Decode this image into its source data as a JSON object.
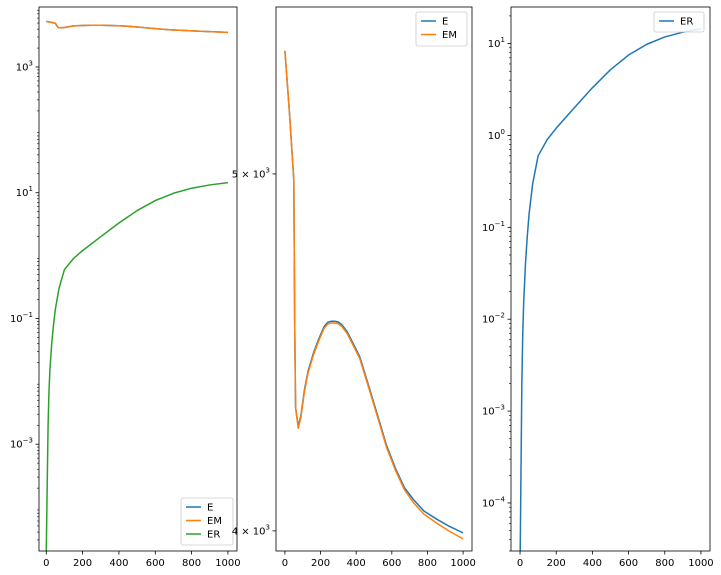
{
  "chart_data": [
    {
      "type": "line",
      "title": "",
      "xlabel": "",
      "ylabel": "",
      "yscale": "log",
      "xlim": [
        -40,
        1050
      ],
      "ylim": [
        2e-05,
        9000
      ],
      "x_ticks": [
        {
          "value": 0,
          "label": "0"
        },
        {
          "value": 200,
          "label": "200"
        },
        {
          "value": 400,
          "label": "400"
        },
        {
          "value": 600,
          "label": "600"
        },
        {
          "value": 800,
          "label": "800"
        },
        {
          "value": 1000,
          "label": "1000"
        }
      ],
      "y_ticks": [
        {
          "value": 0.001,
          "base": "10",
          "exp": "−3"
        },
        {
          "value": 0.1,
          "base": "10",
          "exp": "−1"
        },
        {
          "value": 10,
          "base": "10",
          "exp": "1"
        },
        {
          "value": 1000,
          "base": "10",
          "exp": "3"
        }
      ],
      "grid": false,
      "legend_position": "lower-right",
      "series": [
        {
          "name": "E",
          "color": "#1f77b4",
          "x": [
            0,
            25,
            50,
            65,
            75,
            100,
            150,
            200,
            250,
            300,
            350,
            400,
            450,
            500,
            550,
            600,
            650,
            700,
            750,
            800,
            850,
            900,
            950,
            1000
          ],
          "y": [
            5300,
            5150,
            4950,
            4250,
            4200,
            4250,
            4500,
            4580,
            4620,
            4610,
            4570,
            4530,
            4450,
            4320,
            4200,
            4080,
            3960,
            3880,
            3820,
            3760,
            3700,
            3650,
            3600,
            3550
          ]
        },
        {
          "name": "EM",
          "color": "#ff7f0e",
          "x": [
            0,
            25,
            50,
            65,
            75,
            100,
            150,
            200,
            250,
            300,
            350,
            400,
            450,
            500,
            550,
            600,
            650,
            700,
            750,
            800,
            850,
            900,
            950,
            1000
          ],
          "y": [
            5300,
            5150,
            4950,
            4250,
            4200,
            4250,
            4500,
            4580,
            4620,
            4610,
            4570,
            4530,
            4450,
            4320,
            4200,
            4080,
            3960,
            3880,
            3820,
            3760,
            3700,
            3650,
            3600,
            3550
          ]
        },
        {
          "name": "ER",
          "color": "#2ca02c",
          "x": [
            0,
            5,
            10,
            15,
            20,
            30,
            40,
            50,
            70,
            100,
            150,
            200,
            300,
            400,
            500,
            600,
            700,
            800,
            900,
            1000
          ],
          "y": [
            2e-05,
            0.0002,
            0.002,
            0.007,
            0.015,
            0.04,
            0.08,
            0.14,
            0.3,
            0.6,
            0.9,
            1.2,
            2.0,
            3.3,
            5.2,
            7.5,
            9.8,
            11.8,
            13.3,
            14.5
          ]
        }
      ]
    },
    {
      "type": "line",
      "title": "",
      "xlabel": "",
      "ylabel": "",
      "yscale": "log",
      "xlim": [
        -50,
        1050
      ],
      "ylim": [
        3950,
        5550
      ],
      "x_ticks": [
        {
          "value": 0,
          "label": "0"
        },
        {
          "value": 200,
          "label": "200"
        },
        {
          "value": 400,
          "label": "400"
        },
        {
          "value": 600,
          "label": "600"
        },
        {
          "value": 800,
          "label": "800"
        },
        {
          "value": 1000,
          "label": "1000"
        }
      ],
      "y_ticks": [
        {
          "value": 4000,
          "base": "4 × 10",
          "exp": "3"
        },
        {
          "value": 5000,
          "base": "5 × 10",
          "exp": "3"
        }
      ],
      "grid": false,
      "legend_position": "top-right",
      "series": [
        {
          "name": "E",
          "color": "#1f77b4",
          "x": [
            0,
            25,
            50,
            55,
            60,
            75,
            90,
            110,
            130,
            160,
            190,
            220,
            240,
            260,
            280,
            300,
            320,
            350,
            380,
            420,
            470,
            520,
            570,
            620,
            670,
            720,
            780,
            850,
            920,
            1000
          ],
          "y": [
            5400,
            5200,
            4980,
            4550,
            4320,
            4270,
            4300,
            4370,
            4420,
            4470,
            4510,
            4545,
            4557,
            4560,
            4560,
            4558,
            4550,
            4530,
            4500,
            4460,
            4380,
            4300,
            4220,
            4160,
            4110,
            4080,
            4050,
            4030,
            4012,
            3995
          ]
        },
        {
          "name": "EM",
          "color": "#ff7f0e",
          "x": [
            0,
            25,
            50,
            55,
            60,
            75,
            90,
            110,
            130,
            160,
            190,
            220,
            240,
            260,
            280,
            300,
            320,
            350,
            380,
            420,
            470,
            520,
            570,
            620,
            670,
            720,
            780,
            850,
            920,
            1000
          ],
          "y": [
            5400,
            5200,
            4980,
            4550,
            4320,
            4265,
            4295,
            4365,
            4415,
            4465,
            4505,
            4540,
            4552,
            4555,
            4555,
            4553,
            4545,
            4525,
            4495,
            4455,
            4375,
            4295,
            4215,
            4155,
            4105,
            4072,
            4042,
            4020,
            4000,
            3980
          ]
        }
      ]
    },
    {
      "type": "line",
      "title": "",
      "xlabel": "",
      "ylabel": "",
      "yscale": "log",
      "xlim": [
        -50,
        1050
      ],
      "ylim": [
        3e-05,
        25
      ],
      "x_ticks": [
        {
          "value": 0,
          "label": "0"
        },
        {
          "value": 200,
          "label": "200"
        },
        {
          "value": 400,
          "label": "400"
        },
        {
          "value": 600,
          "label": "600"
        },
        {
          "value": 800,
          "label": "800"
        },
        {
          "value": 1000,
          "label": "1000"
        }
      ],
      "y_ticks": [
        {
          "value": 0.0001,
          "base": "10",
          "exp": "−4"
        },
        {
          "value": 0.001,
          "base": "10",
          "exp": "−3"
        },
        {
          "value": 0.01,
          "base": "10",
          "exp": "−2"
        },
        {
          "value": 0.1,
          "base": "10",
          "exp": "−1"
        },
        {
          "value": 1,
          "base": "10",
          "exp": "0"
        },
        {
          "value": 10,
          "base": "10",
          "exp": "1"
        }
      ],
      "grid": false,
      "legend_position": "top-right",
      "series": [
        {
          "name": "ER",
          "color": "#1f77b4",
          "x": [
            0,
            5,
            10,
            15,
            20,
            30,
            40,
            50,
            70,
            100,
            150,
            200,
            300,
            400,
            500,
            600,
            700,
            800,
            900,
            1000
          ],
          "y": [
            2e-05,
            0.0002,
            0.002,
            0.007,
            0.015,
            0.04,
            0.08,
            0.14,
            0.3,
            0.6,
            0.9,
            1.2,
            2.0,
            3.3,
            5.2,
            7.5,
            9.8,
            11.8,
            13.3,
            14.5
          ]
        }
      ]
    }
  ]
}
